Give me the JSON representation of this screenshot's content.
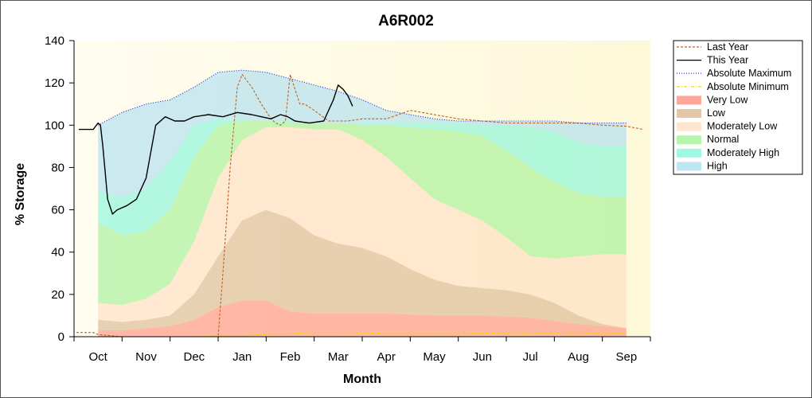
{
  "chart_data": {
    "type": "area",
    "title": "A6R002",
    "xlabel": "Month",
    "ylabel": "% Storage",
    "ylim": [
      0,
      140
    ],
    "yticks": [
      0,
      20,
      40,
      60,
      80,
      100,
      120,
      140
    ],
    "xlim": [
      -0.5,
      11.5
    ],
    "categories": [
      "Oct",
      "Nov",
      "Dec",
      "Jan",
      "Feb",
      "Mar",
      "Apr",
      "May",
      "Jun",
      "Jul",
      "Aug",
      "Sep"
    ],
    "band_x": [
      0,
      0.5,
      1,
      1.5,
      2,
      2.5,
      3,
      3.5,
      4,
      4.5,
      5,
      5.5,
      6,
      6.5,
      7,
      7.5,
      8,
      8.5,
      9,
      9.5,
      10,
      10.5,
      11
    ],
    "bands": [
      {
        "name": "Very Low",
        "color": "#ff8a78",
        "lower": [
          0,
          0,
          0,
          0,
          0,
          0,
          0,
          0,
          0,
          0,
          0,
          0,
          0,
          0,
          0,
          0,
          0,
          0,
          0,
          0,
          0,
          0,
          0
        ],
        "upper": [
          3,
          3,
          4,
          5,
          8,
          14,
          17,
          17,
          12,
          11,
          11,
          11,
          11,
          10.5,
          10,
          10,
          10,
          9.5,
          9,
          7.5,
          6,
          5,
          4
        ]
      },
      {
        "name": "Low",
        "color": "#d9b28c",
        "lower": [
          3,
          3,
          4,
          5,
          8,
          14,
          17,
          17,
          12,
          11,
          11,
          11,
          11,
          10.5,
          10,
          10,
          10,
          9.5,
          9,
          7.5,
          6,
          5,
          4
        ],
        "upper": [
          8,
          7,
          8,
          10,
          20,
          38,
          55,
          60,
          56,
          48,
          44,
          42,
          38,
          32,
          27,
          24,
          23,
          22,
          20,
          16,
          10,
          6,
          4
        ]
      },
      {
        "name": "Moderately Low",
        "color": "#ffdcc0",
        "lower": [
          8,
          7,
          8,
          10,
          20,
          38,
          55,
          60,
          56,
          48,
          44,
          42,
          38,
          32,
          27,
          24,
          23,
          22,
          20,
          16,
          10,
          6,
          4
        ],
        "upper": [
          16,
          15,
          18,
          25,
          45,
          75,
          93,
          99,
          99,
          98,
          98,
          93,
          85,
          75,
          65,
          60,
          55,
          47,
          38,
          37,
          38,
          39,
          39
        ]
      },
      {
        "name": "Normal",
        "color": "#9ef090",
        "lower": [
          16,
          15,
          18,
          25,
          45,
          75,
          93,
          99,
          99,
          98,
          98,
          93,
          85,
          75,
          65,
          60,
          55,
          47,
          38,
          37,
          38,
          39,
          39
        ],
        "upper": [
          54,
          48,
          50,
          60,
          85,
          100,
          102,
          102,
          101,
          101,
          101,
          100,
          100,
          99,
          98,
          97,
          95,
          88,
          80,
          73,
          68,
          66,
          66
        ]
      },
      {
        "name": "Moderately High",
        "color": "#7ff5d8",
        "lower": [
          54,
          48,
          50,
          60,
          85,
          100,
          102,
          102,
          101,
          101,
          101,
          100,
          100,
          99,
          98,
          97,
          95,
          88,
          80,
          73,
          68,
          66,
          66
        ],
        "upper": [
          69,
          66,
          70,
          83,
          100,
          103,
          103,
          102,
          102,
          101,
          101,
          101,
          101,
          101,
          101,
          101,
          100,
          100,
          99,
          97,
          92,
          90,
          90
        ]
      },
      {
        "name": "High",
        "color": "#a8dcf0",
        "lower": [
          69,
          66,
          70,
          83,
          100,
          103,
          103,
          102,
          102,
          101,
          101,
          101,
          101,
          101,
          101,
          101,
          100,
          100,
          99,
          97,
          92,
          90,
          90
        ],
        "upper": [
          100,
          106,
          110,
          112,
          118,
          125,
          126,
          125,
          122,
          119,
          116,
          112,
          107,
          105,
          103,
          102,
          102,
          102,
          102,
          102,
          101,
          101,
          101
        ]
      }
    ],
    "series": [
      {
        "name": "Last Year",
        "color": "#c06020",
        "style": "dashed",
        "x": [
          -0.45,
          -0.1,
          0,
          0.5,
          1,
          1.5,
          2,
          2.2,
          2.5,
          2.6,
          2.75,
          2.9,
          3.0,
          3.2,
          3.4,
          3.6,
          3.7,
          3.8,
          3.9,
          4.0,
          4.2,
          4.3,
          4.5,
          4.8,
          5.2,
          5.5,
          6.0,
          6.5,
          7.0,
          7.5,
          8.0,
          8.5,
          9.0,
          9.5,
          10.0,
          10.5,
          11.0,
          11.35
        ],
        "y": [
          2,
          2,
          1,
          0,
          0,
          0,
          0,
          0,
          0,
          30,
          80,
          118,
          124,
          118,
          110,
          103,
          101,
          100,
          102,
          124,
          110,
          110,
          107,
          102,
          102,
          103,
          103,
          107,
          105,
          103,
          102,
          101,
          101,
          101,
          101,
          100,
          99.5,
          98
        ]
      },
      {
        "name": "This Year",
        "color": "#000000",
        "style": "solid",
        "x": [
          -0.4,
          -0.1,
          0,
          0.05,
          0.1,
          0.2,
          0.3,
          0.4,
          0.6,
          0.8,
          1.0,
          1.2,
          1.4,
          1.6,
          1.8,
          2.0,
          2.3,
          2.6,
          2.9,
          3.2,
          3.4,
          3.6,
          3.8,
          3.95,
          4.1,
          4.4,
          4.7,
          4.9,
          5.0,
          5.1,
          5.2,
          5.3
        ],
        "y": [
          98,
          98,
          101,
          100,
          90,
          65,
          58,
          60,
          62,
          65,
          75,
          100,
          104,
          102,
          102,
          104,
          105,
          104,
          106,
          105,
          104,
          103,
          105,
          104,
          102,
          101,
          102,
          112,
          119,
          117,
          114,
          109
        ]
      },
      {
        "name": "Absolute Maximum",
        "color": "#1a2ad8",
        "style": "dotted",
        "x": [
          0,
          0.5,
          1,
          1.5,
          2,
          2.5,
          3,
          3.5,
          4,
          4.5,
          5,
          5.5,
          6,
          6.5,
          7,
          7.5,
          8,
          8.5,
          9,
          9.5,
          10,
          10.5,
          11
        ],
        "y": [
          100,
          106,
          110,
          112,
          118,
          125,
          126,
          125,
          122,
          119,
          116,
          112,
          107,
          105,
          103,
          102,
          102,
          102,
          102,
          102,
          101,
          101,
          101
        ]
      },
      {
        "name": "Absolute Minimum",
        "color": "#e6d800",
        "style": "dashdot",
        "x": [
          0,
          0.5,
          1,
          1.5,
          2,
          2.5,
          3,
          3.5,
          4,
          4.5,
          5,
          5.5,
          6,
          6.5,
          7,
          7.5,
          8,
          8.5,
          9,
          9.5,
          10,
          10.5,
          11
        ],
        "y": [
          0,
          0,
          0,
          0,
          0,
          0.3,
          0.6,
          1.0,
          1.5,
          2.0,
          2.0,
          1.8,
          1.5,
          1.5,
          1.5,
          1.5,
          1.7,
          1.8,
          1.8,
          1.8,
          1.8,
          1.8,
          1.8
        ]
      }
    ],
    "legend": [
      {
        "label": "Last Year",
        "kind": "line",
        "color": "#c06020",
        "style": "dashed"
      },
      {
        "label": "This Year",
        "kind": "line",
        "color": "#000000",
        "style": "solid"
      },
      {
        "label": "Absolute Maximum",
        "kind": "line",
        "color": "#1a2ad8",
        "style": "dotted"
      },
      {
        "label": "Absolute Minimum",
        "kind": "line",
        "color": "#e6d800",
        "style": "dashdot"
      },
      {
        "label": "Very Low",
        "kind": "fill",
        "color": "#ff8a78"
      },
      {
        "label": "Low",
        "kind": "fill",
        "color": "#d9b28c"
      },
      {
        "label": "Moderately Low",
        "kind": "fill",
        "color": "#ffdcc0"
      },
      {
        "label": "Normal",
        "kind": "fill",
        "color": "#9ef090"
      },
      {
        "label": "Moderately High",
        "kind": "fill",
        "color": "#7ff5d8"
      },
      {
        "label": "High",
        "kind": "fill",
        "color": "#a8dcf0"
      }
    ],
    "legend_position": "top-right",
    "plot_background": "#fffde6"
  }
}
